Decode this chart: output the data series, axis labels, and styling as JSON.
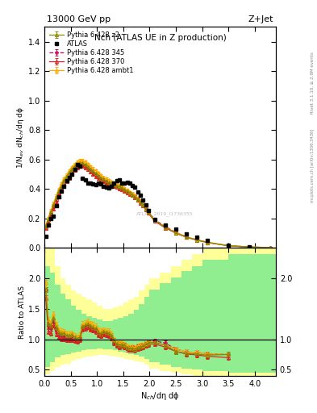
{
  "title_top": "13000 GeV pp",
  "title_right": "Z+Jet",
  "plot_title": "Nch (ATLAS UE in Z production)",
  "ylabel_main": "1/N$_{ev}$ dN$_{ch}$/dη dϕ",
  "ylabel_ratio": "Ratio to ATLAS",
  "xlabel": "N$_{ch}$/dη dϕ",
  "watermark": "ATLAS_2019_I1736355",
  "right_label": "Rivet 3.1.10, ≥ 2.9M events",
  "right_label2": "mcplots.cern.ch [arXiv:1306.3436]",
  "atlas_x": [
    0.025,
    0.075,
    0.125,
    0.175,
    0.225,
    0.275,
    0.325,
    0.375,
    0.425,
    0.475,
    0.525,
    0.575,
    0.625,
    0.675,
    0.725,
    0.775,
    0.825,
    0.875,
    0.925,
    0.975,
    1.025,
    1.075,
    1.125,
    1.175,
    1.225,
    1.275,
    1.325,
    1.375,
    1.425,
    1.475,
    1.525,
    1.575,
    1.625,
    1.675,
    1.725,
    1.775,
    1.825,
    1.875,
    1.925,
    1.975,
    2.1,
    2.3,
    2.5,
    2.7,
    2.9,
    3.1,
    3.5,
    3.9
  ],
  "atlas_y": [
    0.08,
    0.155,
    0.2,
    0.215,
    0.285,
    0.345,
    0.385,
    0.415,
    0.455,
    0.48,
    0.5,
    0.535,
    0.565,
    0.555,
    0.475,
    0.46,
    0.44,
    0.44,
    0.435,
    0.43,
    0.44,
    0.435,
    0.415,
    0.41,
    0.405,
    0.415,
    0.44,
    0.455,
    0.46,
    0.44,
    0.44,
    0.445,
    0.44,
    0.425,
    0.41,
    0.38,
    0.355,
    0.325,
    0.29,
    0.255,
    0.195,
    0.155,
    0.125,
    0.095,
    0.07,
    0.05,
    0.02,
    0.005
  ],
  "p345_x": [
    0.025,
    0.075,
    0.125,
    0.175,
    0.225,
    0.275,
    0.325,
    0.375,
    0.425,
    0.475,
    0.525,
    0.575,
    0.625,
    0.675,
    0.725,
    0.775,
    0.825,
    0.875,
    0.925,
    0.975,
    1.025,
    1.075,
    1.125,
    1.175,
    1.225,
    1.275,
    1.325,
    1.375,
    1.425,
    1.475,
    1.525,
    1.575,
    1.625,
    1.675,
    1.725,
    1.775,
    1.825,
    1.875,
    1.925,
    1.975,
    2.1,
    2.3,
    2.5,
    2.7,
    2.9,
    3.1,
    3.5,
    3.9,
    4.3
  ],
  "p345_y": [
    0.145,
    0.19,
    0.235,
    0.28,
    0.325,
    0.365,
    0.4,
    0.43,
    0.455,
    0.485,
    0.51,
    0.535,
    0.555,
    0.565,
    0.565,
    0.555,
    0.54,
    0.525,
    0.51,
    0.495,
    0.48,
    0.465,
    0.455,
    0.445,
    0.435,
    0.43,
    0.42,
    0.415,
    0.41,
    0.405,
    0.395,
    0.385,
    0.375,
    0.365,
    0.35,
    0.335,
    0.315,
    0.295,
    0.27,
    0.245,
    0.19,
    0.145,
    0.105,
    0.075,
    0.055,
    0.038,
    0.015,
    0.006,
    0.002
  ],
  "p370_x": [
    0.025,
    0.075,
    0.125,
    0.175,
    0.225,
    0.275,
    0.325,
    0.375,
    0.425,
    0.475,
    0.525,
    0.575,
    0.625,
    0.675,
    0.725,
    0.775,
    0.825,
    0.875,
    0.925,
    0.975,
    1.025,
    1.075,
    1.125,
    1.175,
    1.225,
    1.275,
    1.325,
    1.375,
    1.425,
    1.475,
    1.525,
    1.575,
    1.625,
    1.675,
    1.725,
    1.775,
    1.825,
    1.875,
    1.925,
    1.975,
    2.1,
    2.3,
    2.5,
    2.7,
    2.9,
    3.1,
    3.5,
    3.9,
    4.3
  ],
  "p370_y": [
    0.135,
    0.175,
    0.22,
    0.265,
    0.31,
    0.355,
    0.39,
    0.42,
    0.45,
    0.475,
    0.5,
    0.525,
    0.545,
    0.555,
    0.555,
    0.545,
    0.53,
    0.515,
    0.5,
    0.485,
    0.47,
    0.46,
    0.45,
    0.44,
    0.43,
    0.425,
    0.415,
    0.41,
    0.4,
    0.395,
    0.385,
    0.375,
    0.365,
    0.355,
    0.34,
    0.325,
    0.305,
    0.285,
    0.26,
    0.235,
    0.18,
    0.135,
    0.1,
    0.072,
    0.052,
    0.036,
    0.014,
    0.005,
    0.002
  ],
  "pambt1_x": [
    0.025,
    0.075,
    0.125,
    0.175,
    0.225,
    0.275,
    0.325,
    0.375,
    0.425,
    0.475,
    0.525,
    0.575,
    0.625,
    0.675,
    0.725,
    0.775,
    0.825,
    0.875,
    0.925,
    0.975,
    1.025,
    1.075,
    1.125,
    1.175,
    1.225,
    1.275,
    1.325,
    1.375,
    1.425,
    1.475,
    1.525,
    1.575,
    1.625,
    1.675,
    1.725,
    1.775,
    1.825,
    1.875,
    1.925,
    1.975,
    2.1,
    2.3,
    2.5,
    2.7,
    2.9,
    3.1,
    3.5,
    3.9,
    4.3
  ],
  "pambt1_y": [
    0.155,
    0.205,
    0.255,
    0.305,
    0.355,
    0.4,
    0.44,
    0.47,
    0.5,
    0.525,
    0.55,
    0.57,
    0.585,
    0.595,
    0.595,
    0.585,
    0.57,
    0.555,
    0.54,
    0.525,
    0.51,
    0.495,
    0.48,
    0.47,
    0.46,
    0.45,
    0.44,
    0.435,
    0.425,
    0.415,
    0.405,
    0.395,
    0.38,
    0.37,
    0.355,
    0.34,
    0.32,
    0.295,
    0.27,
    0.245,
    0.185,
    0.14,
    0.105,
    0.075,
    0.055,
    0.038,
    0.015,
    0.006,
    0.002
  ],
  "pz2_x": [
    0.025,
    0.075,
    0.125,
    0.175,
    0.225,
    0.275,
    0.325,
    0.375,
    0.425,
    0.475,
    0.525,
    0.575,
    0.625,
    0.675,
    0.725,
    0.775,
    0.825,
    0.875,
    0.925,
    0.975,
    1.025,
    1.075,
    1.125,
    1.175,
    1.225,
    1.275,
    1.325,
    1.375,
    1.425,
    1.475,
    1.525,
    1.575,
    1.625,
    1.675,
    1.725,
    1.775,
    1.825,
    1.875,
    1.925,
    1.975,
    2.1,
    2.3,
    2.5,
    2.7,
    2.9,
    3.1,
    3.5,
    3.9,
    4.3
  ],
  "pz2_y": [
    0.145,
    0.195,
    0.245,
    0.29,
    0.34,
    0.385,
    0.42,
    0.455,
    0.485,
    0.51,
    0.535,
    0.555,
    0.57,
    0.575,
    0.575,
    0.565,
    0.55,
    0.535,
    0.52,
    0.505,
    0.49,
    0.475,
    0.465,
    0.455,
    0.445,
    0.44,
    0.43,
    0.42,
    0.415,
    0.405,
    0.395,
    0.385,
    0.375,
    0.36,
    0.345,
    0.33,
    0.31,
    0.29,
    0.265,
    0.24,
    0.185,
    0.14,
    0.1,
    0.073,
    0.053,
    0.037,
    0.015,
    0.006,
    0.002
  ],
  "color_p345": "#cc0055",
  "color_p370": "#dd2222",
  "color_pambt1": "#ffaa00",
  "color_pz2": "#888800",
  "ylim_main": [
    0.0,
    1.5
  ],
  "ylim_ratio": [
    0.4,
    2.5
  ],
  "xlim": [
    0.0,
    4.4
  ],
  "bg_yellow_bins": [
    0.0,
    0.1,
    0.2,
    0.3,
    0.4,
    0.5,
    0.6,
    0.7,
    0.8,
    0.9,
    1.0,
    1.1,
    1.2,
    1.3,
    1.4,
    1.5,
    1.6,
    1.7,
    1.8,
    1.9,
    2.0,
    2.2,
    2.4,
    2.6,
    2.8,
    3.0,
    3.5,
    4.0,
    4.5
  ],
  "bg_yellow_lo": [
    0.42,
    0.48,
    0.55,
    0.58,
    0.6,
    0.65,
    0.68,
    0.7,
    0.72,
    0.73,
    0.74,
    0.74,
    0.73,
    0.72,
    0.7,
    0.68,
    0.66,
    0.64,
    0.62,
    0.58,
    0.52,
    0.48,
    0.45,
    0.42,
    0.4,
    0.38,
    0.35,
    0.35
  ],
  "bg_yellow_hi": [
    2.5,
    2.5,
    2.2,
    2.0,
    1.9,
    1.8,
    1.75,
    1.7,
    1.65,
    1.6,
    1.55,
    1.5,
    1.5,
    1.52,
    1.55,
    1.6,
    1.65,
    1.7,
    1.8,
    1.9,
    2.0,
    2.1,
    2.2,
    2.3,
    2.4,
    2.5,
    2.5,
    2.5
  ],
  "bg_green_lo": [
    0.55,
    0.62,
    0.7,
    0.74,
    0.76,
    0.78,
    0.8,
    0.82,
    0.83,
    0.84,
    0.85,
    0.84,
    0.83,
    0.82,
    0.8,
    0.78,
    0.76,
    0.74,
    0.72,
    0.68,
    0.62,
    0.58,
    0.55,
    0.52,
    0.5,
    0.48,
    0.45,
    0.45
  ],
  "bg_green_hi": [
    2.2,
    2.1,
    1.9,
    1.75,
    1.65,
    1.55,
    1.48,
    1.42,
    1.38,
    1.35,
    1.32,
    1.3,
    1.3,
    1.32,
    1.35,
    1.38,
    1.42,
    1.48,
    1.58,
    1.7,
    1.82,
    1.92,
    2.02,
    2.12,
    2.2,
    2.3,
    2.4,
    2.4
  ]
}
